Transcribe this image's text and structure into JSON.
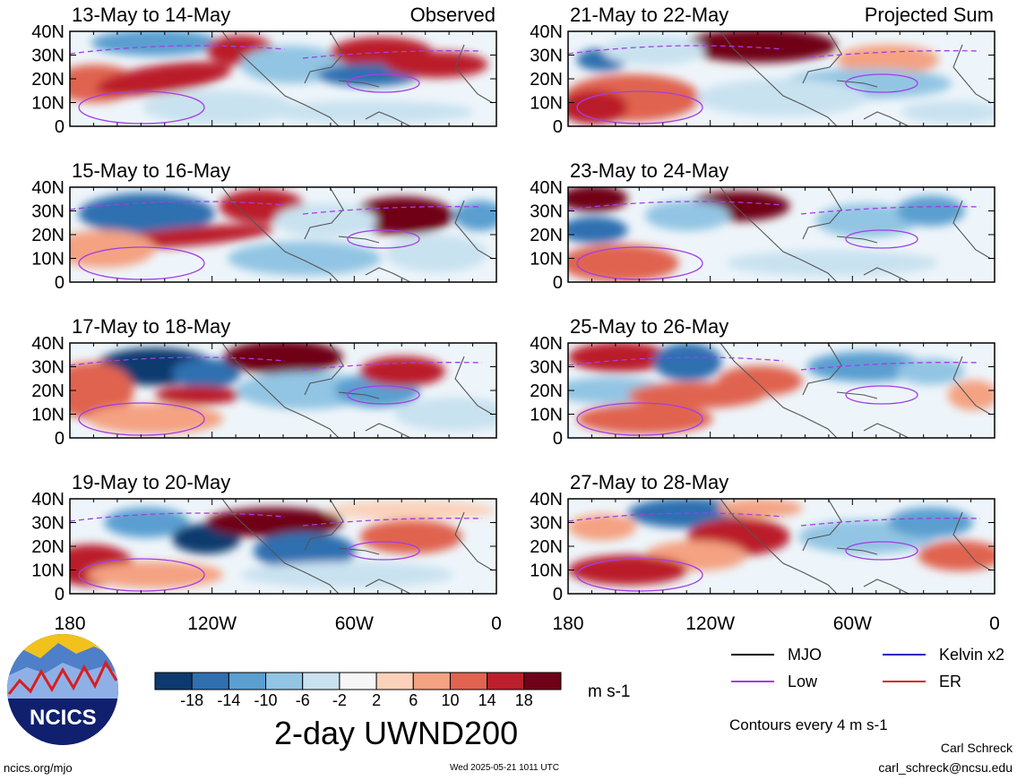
{
  "figure": {
    "title": "2-day UWND200",
    "left_column_label": "Observed",
    "right_column_label": "Projected Sum",
    "lat_ticks": [
      "40N",
      "30N",
      "20N",
      "10N",
      "0"
    ],
    "lon_ticks": [
      "180",
      "120W",
      "60W",
      "0"
    ]
  },
  "panels": [
    {
      "date": "13-May to 14-May"
    },
    {
      "date": "15-May to 16-May"
    },
    {
      "date": "17-May to 18-May"
    },
    {
      "date": "19-May to 20-May"
    },
    {
      "date": "21-May to 22-May"
    },
    {
      "date": "23-May to 24-May"
    },
    {
      "date": "25-May to 26-May"
    },
    {
      "date": "27-May to 28-May"
    }
  ],
  "colorbar": {
    "unit": "m s-1",
    "tick_labels": [
      "-18",
      "-14",
      "-10",
      "-6",
      "-2",
      "2",
      "6",
      "10",
      "14",
      "18"
    ],
    "colors": [
      "#0c3a6e",
      "#2f6fb0",
      "#5a9fd0",
      "#92c5e3",
      "#c9e2f0",
      "#f6f6f6",
      "#fbd1b9",
      "#f4a282",
      "#e0644f",
      "#bb1f2b",
      "#6f0119"
    ]
  },
  "legend": {
    "items": [
      {
        "label": "MJO",
        "color": "#000000"
      },
      {
        "label": "Kelvin x2",
        "color": "#1a1ac8"
      },
      {
        "label": "Low",
        "color": "#a23ee6"
      },
      {
        "label": "ER",
        "color": "#d42222"
      }
    ],
    "contour_note": "Contours every 4 m s-1"
  },
  "footer": {
    "url": "ncics.org/mjo",
    "timestamp": "Wed 2025-05-21 1011 UTC",
    "author": "Carl Schreck",
    "email": "carl_schreck@ncsu.edu",
    "logo_text": "NCICS"
  }
}
